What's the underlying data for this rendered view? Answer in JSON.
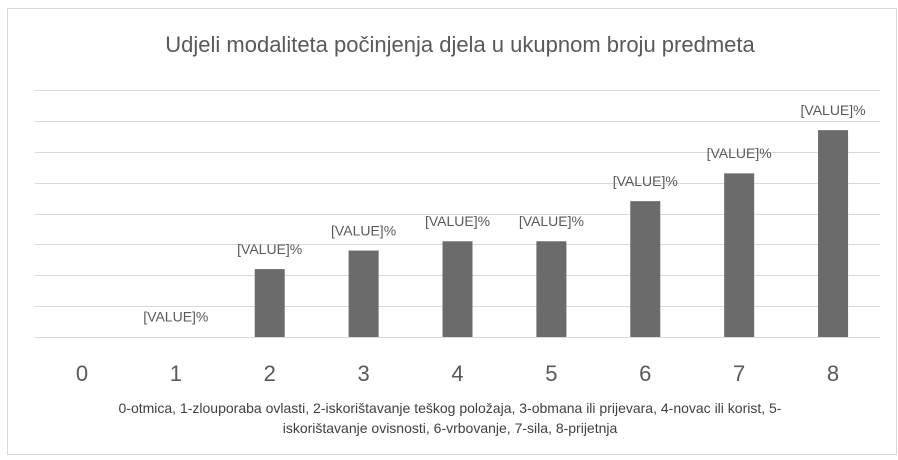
{
  "chart_data": {
    "type": "bar",
    "title": "Udjeli modaliteta počinjenja djela u ukupnom broju predmeta",
    "categories": [
      "0",
      "1",
      "2",
      "3",
      "4",
      "5",
      "6",
      "7",
      "8"
    ],
    "values": [
      null,
      0,
      2.2,
      2.8,
      3.1,
      3.1,
      4.4,
      5.3,
      6.7
    ],
    "value_labels": [
      null,
      "[VALUE]%",
      "[VALUE]%",
      "[VALUE]%",
      "[VALUE]%",
      "[VALUE]%",
      "[VALUE]%",
      "[VALUE]%",
      "[VALUE]%"
    ],
    "color": "#6b6b6b",
    "ylim": [
      0,
      8
    ],
    "yticks": [
      0,
      1,
      2,
      3,
      4,
      5,
      6,
      7,
      8
    ],
    "grid": true,
    "note": "0-otmica, 1-zlouporaba ovlasti, 2-iskorištavanje teškog položaja, 3-obmana ili prijevara, 4-novac ili korist, 5-iskorištavanje ovisnosti, 6-vrbovanje, 7-sila, 8-prijetnja"
  }
}
